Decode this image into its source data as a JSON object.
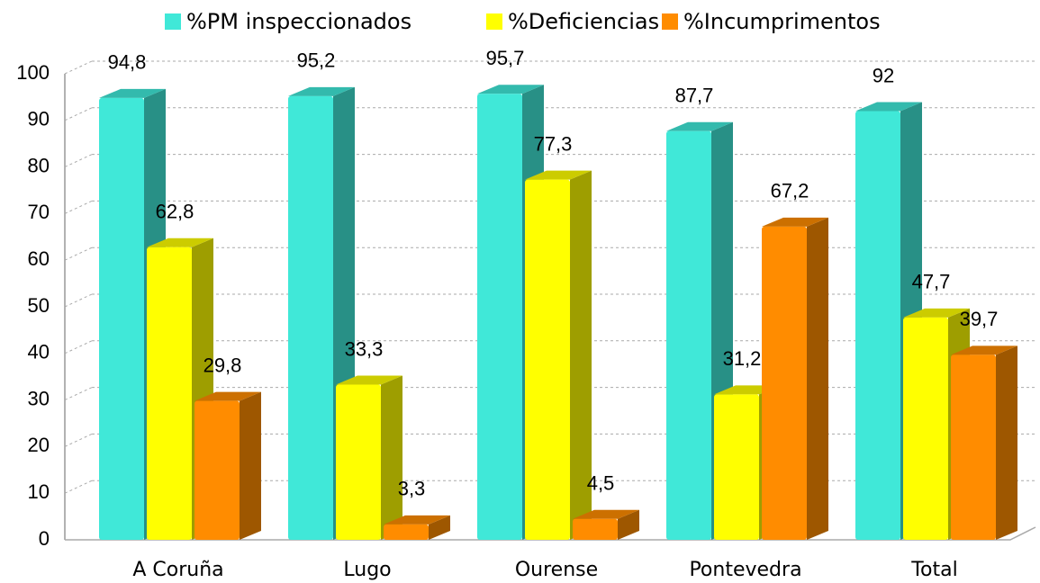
{
  "chart_data": {
    "type": "bar3d",
    "categories": [
      "A Coruña",
      "Lugo",
      "Ourense",
      "Pontevedra",
      "Total"
    ],
    "series": [
      {
        "name": "%PM inspeccionados",
        "color": "#40E8D8",
        "values": [
          94.8,
          95.2,
          95.7,
          87.7,
          92
        ],
        "value_labels": [
          "94,8",
          "95,2",
          "95,7",
          "87,7",
          "92"
        ]
      },
      {
        "name": "%Deficiencias",
        "color": "#FFFF00",
        "values": [
          62.8,
          33.3,
          77.3,
          31.2,
          47.7
        ],
        "value_labels": [
          "62,8",
          "33,3",
          "77,3",
          "31,2",
          "47,7"
        ]
      },
      {
        "name": "%Incumprimentos",
        "color": "#FF8C00",
        "values": [
          29.8,
          3.3,
          4.5,
          67.2,
          39.7
        ],
        "value_labels": [
          "29,8",
          "3,3",
          "4,5",
          "67,2",
          "39,7"
        ]
      }
    ],
    "ylim": [
      0,
      100
    ],
    "yticks": [
      0,
      10,
      20,
      30,
      40,
      50,
      60,
      70,
      80,
      90,
      100
    ],
    "grid": true
  }
}
